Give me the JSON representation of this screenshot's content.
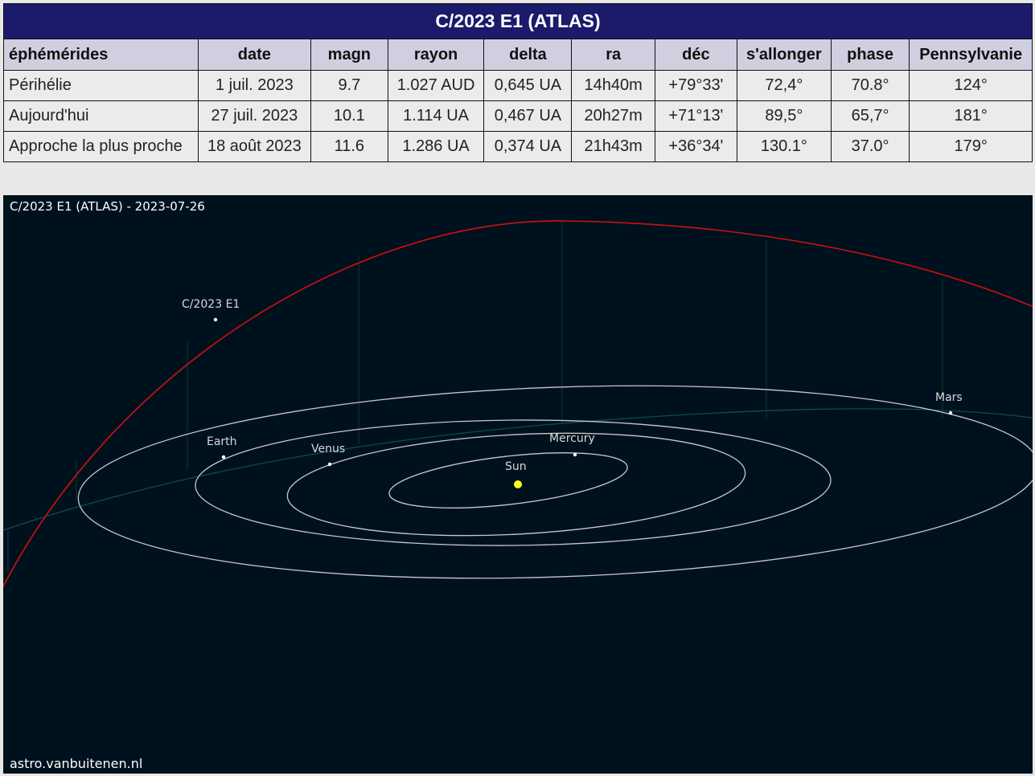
{
  "table": {
    "title": "C/2023 E1 (ATLAS)",
    "headers": [
      "éphémérides",
      "date",
      "magn",
      "rayon",
      "delta",
      "ra",
      "déc",
      "s'allonger",
      "phase",
      "Pennsylvanie"
    ],
    "rows": [
      [
        "Périhélie",
        "1 juil. 2023",
        "9.7",
        "1.027 AUD",
        "0,645 UA",
        "14h40m",
        "+79°33'",
        "72,4°",
        "70.8°",
        "124°"
      ],
      [
        "Aujourd'hui",
        "27 juil. 2023",
        "10.1",
        "1.114 UA",
        "0,467 UA",
        "20h27m",
        "+71°13'",
        "89,5°",
        "65,7°",
        "181°"
      ],
      [
        "Approche la plus proche",
        "18 août 2023",
        "11.6",
        "1.286 UA",
        "0,374 UA",
        "21h43m",
        "+36°34'",
        "130.1°",
        "37.0°",
        "179°"
      ]
    ]
  },
  "orbit_view": {
    "caption": "C/2023 E1 (ATLAS) - 2023-07-26",
    "credit": "astro.vanbuitenen.nl",
    "labels": {
      "comet": "C/2023 E1",
      "earth": "Earth",
      "venus": "Venus",
      "mercury": "Mercury",
      "sun": "Sun",
      "mars": "Mars"
    },
    "colors": {
      "background": "#00111e",
      "comet_orbit": "#d01010",
      "planet_orbits": "#c8c8c8",
      "ecliptic": "#0e4a55",
      "sun": "#ffff20",
      "header": "#1c1a6b"
    }
  }
}
